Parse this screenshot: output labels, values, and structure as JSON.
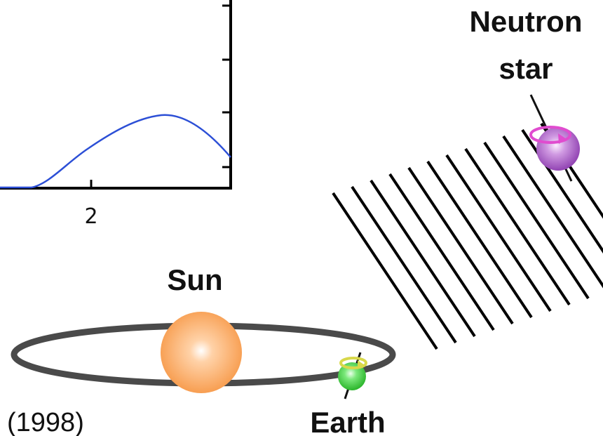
{
  "labels": {
    "neutron_star_line1": "Neutron",
    "neutron_star_line2": "star",
    "sun": "Sun",
    "earth": "Earth",
    "year": "(1998)"
  },
  "plot": {
    "x_tick_label": "2",
    "curve_color": "#2c4fd6",
    "axis_color": "#000000"
  },
  "colors": {
    "sun": "#f79a4a",
    "earth": "#3fcf3f",
    "neutron_star": "#a85ac8",
    "spin_arrow_neutron": "#e04ccf",
    "spin_arrow_earth": "#d8d84a",
    "orbit": "#4a4a4a",
    "wavefronts": "#000000"
  },
  "wavefront_count": 12
}
